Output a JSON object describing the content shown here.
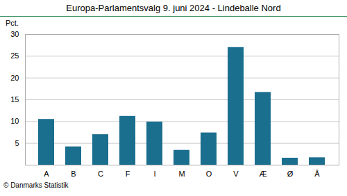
{
  "chart_data": {
    "type": "bar",
    "title": "Europa-Parlamentsvalg 9. juni 2024 - Lindeballe Nord",
    "ylabel": "Pct.",
    "caption": "© Danmarks Statistik",
    "categories": [
      "A",
      "B",
      "C",
      "F",
      "I",
      "M",
      "O",
      "V",
      "Æ",
      "Ø",
      "Å"
    ],
    "values": [
      10.5,
      4.2,
      7.0,
      11.2,
      9.9,
      3.4,
      7.4,
      27.0,
      16.7,
      1.6,
      1.7
    ],
    "color": "#1a6e8e",
    "ylim": [
      0,
      30
    ],
    "yticks": [
      5,
      10,
      15,
      20,
      25,
      30
    ],
    "grid": true
  }
}
